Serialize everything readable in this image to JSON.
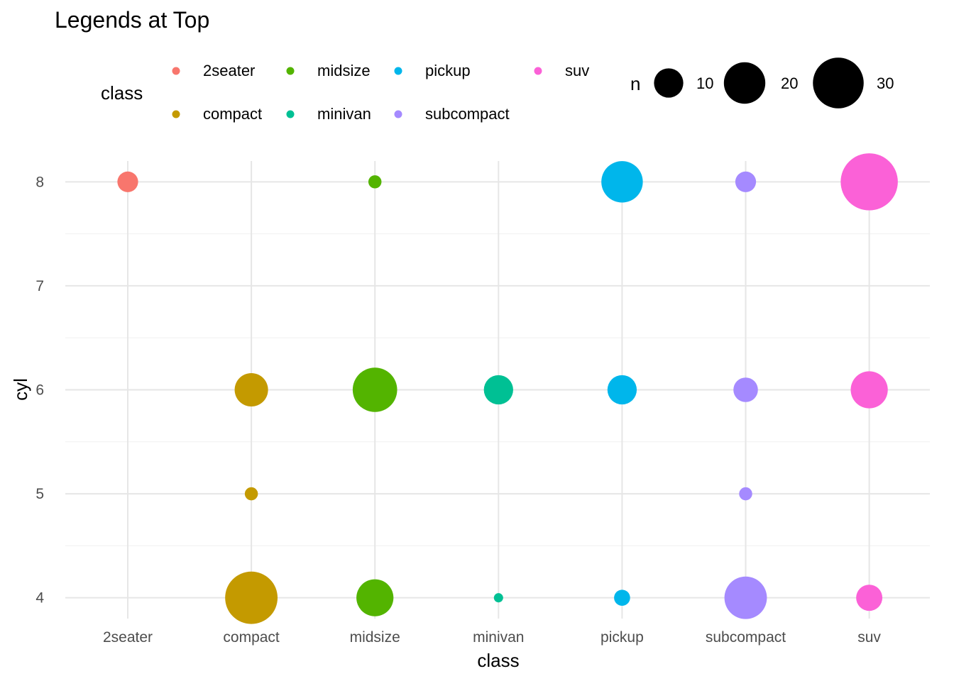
{
  "chart_data": {
    "type": "scatter",
    "title": "Legends at Top",
    "xlabel": "class",
    "ylabel": "cyl",
    "categories": [
      "2seater",
      "compact",
      "midsize",
      "minivan",
      "pickup",
      "subcompact",
      "suv"
    ],
    "yticks": [
      4,
      5,
      6,
      7,
      8
    ],
    "ylim": [
      3.8,
      8.2
    ],
    "grid": true,
    "legend_position": "top",
    "color_legend": {
      "title": "class",
      "entries": [
        {
          "label": "2seater",
          "color": "#F8766D"
        },
        {
          "label": "compact",
          "color": "#C49A00"
        },
        {
          "label": "midsize",
          "color": "#53B400"
        },
        {
          "label": "minivan",
          "color": "#00C094"
        },
        {
          "label": "pickup",
          "color": "#00B6EB"
        },
        {
          "label": "subcompact",
          "color": "#A58AFF"
        },
        {
          "label": "suv",
          "color": "#FB61D7"
        }
      ]
    },
    "size_legend": {
      "title": "n",
      "entries": [
        10,
        20,
        30
      ]
    },
    "points": [
      {
        "class": "2seater",
        "cyl": 8,
        "n": 5
      },
      {
        "class": "compact",
        "cyl": 4,
        "n": 32
      },
      {
        "class": "compact",
        "cyl": 5,
        "n": 2
      },
      {
        "class": "compact",
        "cyl": 6,
        "n": 13
      },
      {
        "class": "midsize",
        "cyl": 4,
        "n": 16
      },
      {
        "class": "midsize",
        "cyl": 6,
        "n": 23
      },
      {
        "class": "midsize",
        "cyl": 8,
        "n": 2
      },
      {
        "class": "minivan",
        "cyl": 4,
        "n": 1
      },
      {
        "class": "minivan",
        "cyl": 6,
        "n": 10
      },
      {
        "class": "pickup",
        "cyl": 4,
        "n": 3
      },
      {
        "class": "pickup",
        "cyl": 6,
        "n": 10
      },
      {
        "class": "pickup",
        "cyl": 8,
        "n": 20
      },
      {
        "class": "subcompact",
        "cyl": 4,
        "n": 21
      },
      {
        "class": "subcompact",
        "cyl": 5,
        "n": 2
      },
      {
        "class": "subcompact",
        "cyl": 6,
        "n": 7
      },
      {
        "class": "subcompact",
        "cyl": 8,
        "n": 5
      },
      {
        "class": "suv",
        "cyl": 4,
        "n": 8
      },
      {
        "class": "suv",
        "cyl": 6,
        "n": 16
      },
      {
        "class": "suv",
        "cyl": 8,
        "n": 38
      }
    ]
  }
}
